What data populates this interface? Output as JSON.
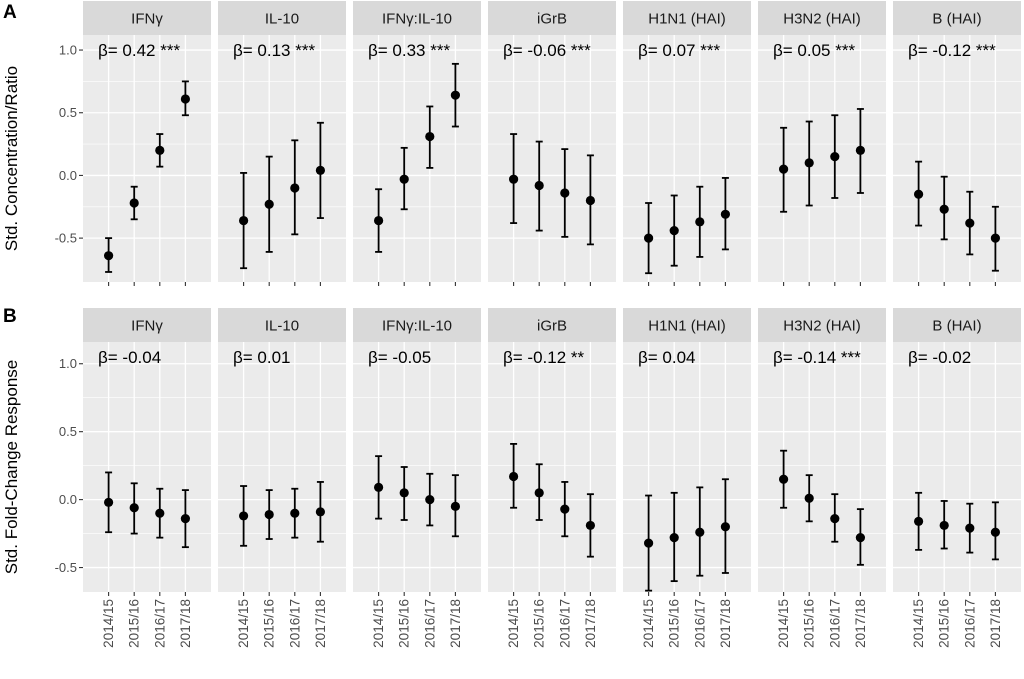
{
  "chart_data": [
    {
      "type": "scatter",
      "panel_label": "A",
      "ylabel": "Std. Concentration/Ratio",
      "ylim": [
        -0.85,
        1.12
      ],
      "yticks": [
        -0.5,
        0.0,
        0.5,
        1.0
      ],
      "ytick_labels": [
        "-0.5",
        "0.0",
        "0.5",
        "1.0"
      ],
      "categories": [
        "2014/15",
        "2015/16",
        "2016/17",
        "2017/18"
      ],
      "facets": [
        {
          "name": "IFNγ",
          "beta": "β= 0.42 ***",
          "points": [
            {
              "x": "2014/15",
              "y": -0.64,
              "lo": -0.77,
              "hi": -0.5
            },
            {
              "x": "2015/16",
              "y": -0.22,
              "lo": -0.35,
              "hi": -0.09
            },
            {
              "x": "2016/17",
              "y": 0.2,
              "lo": 0.07,
              "hi": 0.33
            },
            {
              "x": "2017/18",
              "y": 0.61,
              "lo": 0.48,
              "hi": 0.75
            }
          ]
        },
        {
          "name": "IL-10",
          "beta": "β= 0.13 ***",
          "points": [
            {
              "x": "2014/15",
              "y": -0.36,
              "lo": -0.74,
              "hi": 0.02
            },
            {
              "x": "2015/16",
              "y": -0.23,
              "lo": -0.61,
              "hi": 0.15
            },
            {
              "x": "2016/17",
              "y": -0.1,
              "lo": -0.47,
              "hi": 0.28
            },
            {
              "x": "2017/18",
              "y": 0.04,
              "lo": -0.34,
              "hi": 0.42
            }
          ]
        },
        {
          "name": "IFNγ:IL-10",
          "beta": "β= 0.33 ***",
          "points": [
            {
              "x": "2014/15",
              "y": -0.36,
              "lo": -0.61,
              "hi": -0.11
            },
            {
              "x": "2015/16",
              "y": -0.03,
              "lo": -0.27,
              "hi": 0.22
            },
            {
              "x": "2016/17",
              "y": 0.31,
              "lo": 0.06,
              "hi": 0.55
            },
            {
              "x": "2017/18",
              "y": 0.64,
              "lo": 0.39,
              "hi": 0.89
            }
          ]
        },
        {
          "name": "iGrB",
          "beta": "β= -0.06 ***",
          "points": [
            {
              "x": "2014/15",
              "y": -0.03,
              "lo": -0.38,
              "hi": 0.33
            },
            {
              "x": "2015/16",
              "y": -0.08,
              "lo": -0.44,
              "hi": 0.27
            },
            {
              "x": "2016/17",
              "y": -0.14,
              "lo": -0.49,
              "hi": 0.21
            },
            {
              "x": "2017/18",
              "y": -0.2,
              "lo": -0.55,
              "hi": 0.16
            }
          ]
        },
        {
          "name": "H1N1 (HAI)",
          "beta": "β= 0.07 ***",
          "points": [
            {
              "x": "2014/15",
              "y": -0.5,
              "lo": -0.78,
              "hi": -0.22
            },
            {
              "x": "2015/16",
              "y": -0.44,
              "lo": -0.72,
              "hi": -0.16
            },
            {
              "x": "2016/17",
              "y": -0.37,
              "lo": -0.65,
              "hi": -0.09
            },
            {
              "x": "2017/18",
              "y": -0.31,
              "lo": -0.59,
              "hi": -0.02
            }
          ]
        },
        {
          "name": "H3N2 (HAI)",
          "beta": "β= 0.05 ***",
          "points": [
            {
              "x": "2014/15",
              "y": 0.05,
              "lo": -0.29,
              "hi": 0.38
            },
            {
              "x": "2015/16",
              "y": 0.1,
              "lo": -0.24,
              "hi": 0.43
            },
            {
              "x": "2016/17",
              "y": 0.15,
              "lo": -0.18,
              "hi": 0.48
            },
            {
              "x": "2017/18",
              "y": 0.2,
              "lo": -0.14,
              "hi": 0.53
            }
          ]
        },
        {
          "name": "B (HAI)",
          "beta": "β= -0.12 ***",
          "points": [
            {
              "x": "2014/15",
              "y": -0.15,
              "lo": -0.4,
              "hi": 0.11
            },
            {
              "x": "2015/16",
              "y": -0.27,
              "lo": -0.51,
              "hi": -0.01
            },
            {
              "x": "2016/17",
              "y": -0.38,
              "lo": -0.63,
              "hi": -0.13
            },
            {
              "x": "2017/18",
              "y": -0.5,
              "lo": -0.76,
              "hi": -0.25
            }
          ]
        }
      ]
    },
    {
      "type": "scatter",
      "panel_label": "B",
      "ylabel": "Std. Fold-Change Response",
      "ylim": [
        -0.68,
        1.16
      ],
      "yticks": [
        -0.5,
        0.0,
        0.5,
        1.0
      ],
      "ytick_labels": [
        "-0.5",
        "0.0",
        "0.5",
        "1.0"
      ],
      "categories": [
        "2014/15",
        "2015/16",
        "2016/17",
        "2017/18"
      ],
      "facets": [
        {
          "name": "IFNγ",
          "beta": "β= -0.04",
          "points": [
            {
              "x": "2014/15",
              "y": -0.02,
              "lo": -0.24,
              "hi": 0.2
            },
            {
              "x": "2015/16",
              "y": -0.06,
              "lo": -0.25,
              "hi": 0.12
            },
            {
              "x": "2016/17",
              "y": -0.1,
              "lo": -0.28,
              "hi": 0.08
            },
            {
              "x": "2017/18",
              "y": -0.14,
              "lo": -0.35,
              "hi": 0.07
            }
          ]
        },
        {
          "name": "IL-10",
          "beta": "β= 0.01",
          "points": [
            {
              "x": "2014/15",
              "y": -0.12,
              "lo": -0.34,
              "hi": 0.1
            },
            {
              "x": "2015/16",
              "y": -0.11,
              "lo": -0.29,
              "hi": 0.07
            },
            {
              "x": "2016/17",
              "y": -0.1,
              "lo": -0.28,
              "hi": 0.08
            },
            {
              "x": "2017/18",
              "y": -0.09,
              "lo": -0.31,
              "hi": 0.13
            }
          ]
        },
        {
          "name": "IFNγ:IL-10",
          "beta": "β= -0.05",
          "points": [
            {
              "x": "2014/15",
              "y": 0.09,
              "lo": -0.14,
              "hi": 0.32
            },
            {
              "x": "2015/16",
              "y": 0.05,
              "lo": -0.15,
              "hi": 0.24
            },
            {
              "x": "2016/17",
              "y": 0.0,
              "lo": -0.19,
              "hi": 0.19
            },
            {
              "x": "2017/18",
              "y": -0.05,
              "lo": -0.27,
              "hi": 0.18
            }
          ]
        },
        {
          "name": "iGrB",
          "beta": "β= -0.12 **",
          "points": [
            {
              "x": "2014/15",
              "y": 0.17,
              "lo": -0.06,
              "hi": 0.41
            },
            {
              "x": "2015/16",
              "y": 0.05,
              "lo": -0.15,
              "hi": 0.26
            },
            {
              "x": "2016/17",
              "y": -0.07,
              "lo": -0.27,
              "hi": 0.13
            },
            {
              "x": "2017/18",
              "y": -0.19,
              "lo": -0.42,
              "hi": 0.04
            }
          ]
        },
        {
          "name": "H1N1 (HAI)",
          "beta": "β= 0.04",
          "points": [
            {
              "x": "2014/15",
              "y": -0.32,
              "lo": -0.67,
              "hi": 0.03
            },
            {
              "x": "2015/16",
              "y": -0.28,
              "lo": -0.6,
              "hi": 0.05
            },
            {
              "x": "2016/17",
              "y": -0.24,
              "lo": -0.56,
              "hi": 0.09
            },
            {
              "x": "2017/18",
              "y": -0.2,
              "lo": -0.54,
              "hi": 0.15
            }
          ]
        },
        {
          "name": "H3N2 (HAI)",
          "beta": "β= -0.14 ***",
          "points": [
            {
              "x": "2014/15",
              "y": 0.15,
              "lo": -0.06,
              "hi": 0.36
            },
            {
              "x": "2015/16",
              "y": 0.01,
              "lo": -0.16,
              "hi": 0.18
            },
            {
              "x": "2016/17",
              "y": -0.14,
              "lo": -0.31,
              "hi": 0.04
            },
            {
              "x": "2017/18",
              "y": -0.28,
              "lo": -0.48,
              "hi": -0.07
            }
          ]
        },
        {
          "name": "B (HAI)",
          "beta": "β= -0.02",
          "points": [
            {
              "x": "2014/15",
              "y": -0.16,
              "lo": -0.37,
              "hi": 0.05
            },
            {
              "x": "2015/16",
              "y": -0.19,
              "lo": -0.36,
              "hi": -0.01
            },
            {
              "x": "2016/17",
              "y": -0.21,
              "lo": -0.39,
              "hi": -0.03
            },
            {
              "x": "2017/18",
              "y": -0.24,
              "lo": -0.44,
              "hi": -0.02
            }
          ]
        }
      ]
    }
  ]
}
